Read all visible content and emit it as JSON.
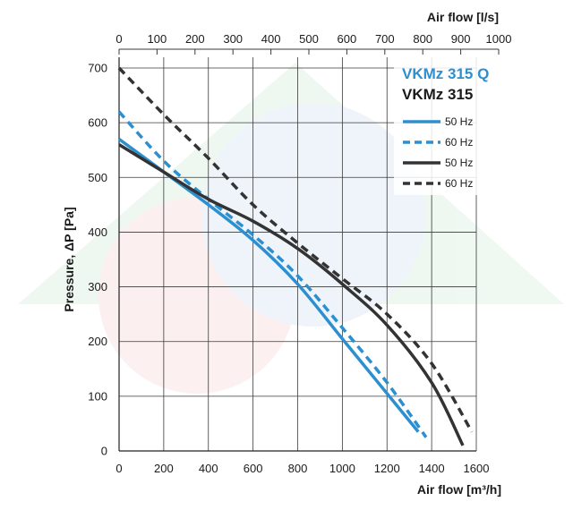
{
  "chart_data": {
    "type": "line",
    "title": "",
    "models": {
      "primary": "VKMz 315 Q",
      "secondary": "VKMz 315"
    },
    "xlabel": "Air flow [m³/h]",
    "x2label": "Air flow [l/s]",
    "ylabel": "Pressure, ΔP [Pa]",
    "xlim": [
      0,
      1600
    ],
    "x2lim": [
      0,
      1000
    ],
    "ylim": [
      0,
      700
    ],
    "x_ticks": [
      "0",
      "200",
      "400",
      "600",
      "800",
      "1000",
      "1200",
      "1400",
      "1600"
    ],
    "x2_ticks": [
      "0",
      "100",
      "200",
      "300",
      "400",
      "500",
      "600",
      "700",
      "800",
      "900",
      "1000"
    ],
    "y_ticks": [
      "0",
      "100",
      "200",
      "300",
      "400",
      "500",
      "600",
      "700"
    ],
    "grid": true,
    "legend_placement": "top-right",
    "series": [
      {
        "name": "50 Hz",
        "model": "VKMz 315 Q",
        "color": "#2b8fd0",
        "dash": "solid",
        "x": [
          0,
          200,
          400,
          600,
          800,
          1000,
          1200,
          1340
        ],
        "y": [
          570,
          510,
          450,
          385,
          305,
          205,
          105,
          35
        ]
      },
      {
        "name": "60 Hz",
        "model": "VKMz 315 Q",
        "color": "#2b8fd0",
        "dash": "dashed",
        "x": [
          0,
          200,
          400,
          600,
          800,
          1000,
          1200,
          1375
        ],
        "y": [
          620,
          530,
          460,
          395,
          320,
          225,
          125,
          25
        ]
      },
      {
        "name": "50 Hz",
        "model": "VKMz 315",
        "color": "#333333",
        "dash": "solid",
        "x": [
          0,
          200,
          400,
          600,
          800,
          1000,
          1200,
          1400,
          1540
        ],
        "y": [
          560,
          510,
          460,
          420,
          370,
          305,
          230,
          125,
          10
        ]
      },
      {
        "name": "60 Hz",
        "model": "VKMz 315",
        "color": "#333333",
        "dash": "dashed",
        "x": [
          0,
          200,
          400,
          600,
          800,
          1000,
          1200,
          1400,
          1580
        ],
        "y": [
          700,
          615,
          535,
          450,
          380,
          315,
          250,
          160,
          35
        ]
      }
    ]
  }
}
